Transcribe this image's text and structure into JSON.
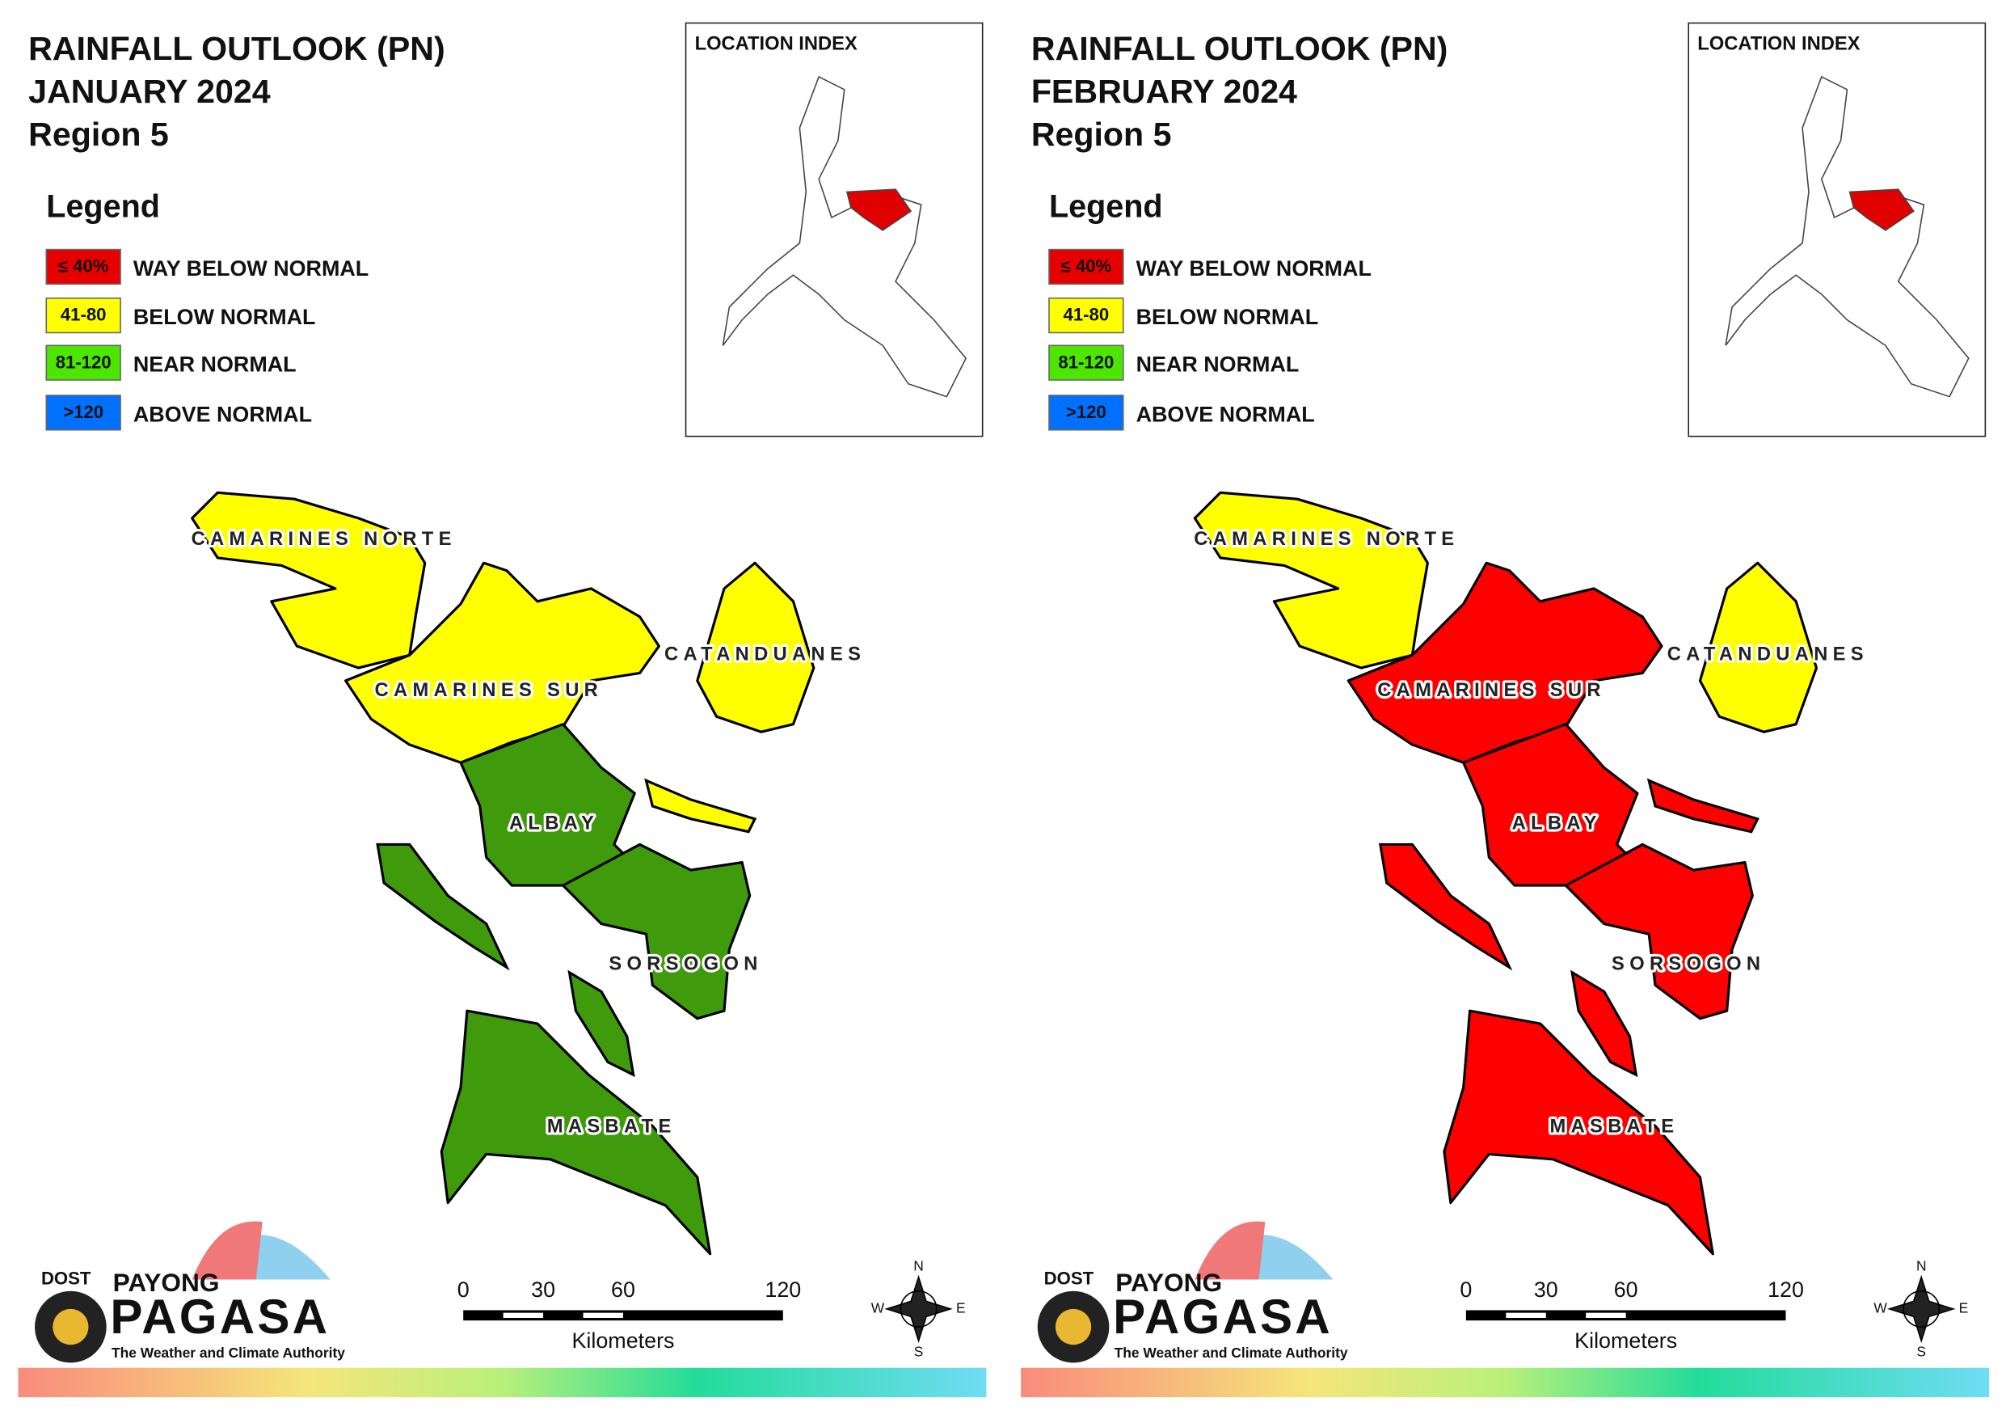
{
  "panels": [
    {
      "title": [
        "RAINFALL OUTLOOK (PN)",
        "JANUARY 2024",
        "Region 5"
      ],
      "legend": {
        "heading": "Legend",
        "items": [
          {
            "key": "≤ 40%",
            "label": "WAY BELOW NORMAL",
            "color": "#e60000"
          },
          {
            "key": "41-80",
            "label": "BELOW NORMAL",
            "color": "#ffff00"
          },
          {
            "key": "81-120",
            "label": "NEAR NORMAL",
            "color": "#4ce600"
          },
          {
            "key": ">120",
            "label": "ABOVE NORMAL",
            "color": "#0070ff"
          }
        ]
      },
      "location_index": "LOCATION INDEX",
      "provinces": [
        {
          "label": "CAMARINES NORTE",
          "color": "#ffff00"
        },
        {
          "label": "CAMARINES SUR",
          "color": "#ffff00"
        },
        {
          "label": "CATANDUANES",
          "color": "#ffff00"
        },
        {
          "label": "ALBAY",
          "color": "#3f9b0b"
        },
        {
          "label": "SORSOGON",
          "color": "#3f9b0b"
        },
        {
          "label": "MASBATE",
          "color": "#3f9b0b"
        }
      ],
      "scale": {
        "ticks": [
          0,
          30,
          60,
          120
        ],
        "unit": "Kilometers"
      },
      "logo": {
        "agency": "DOST",
        "line1": "PAYONG",
        "line2": "PAGASA",
        "tagline": "The Weather and Climate Authority"
      },
      "compass": {
        "n": "N",
        "e": "E",
        "s": "S",
        "w": "W"
      }
    },
    {
      "title": [
        "RAINFALL OUTLOOK (PN)",
        "FEBRUARY 2024",
        "Region 5"
      ],
      "legend": {
        "heading": "Legend",
        "items": [
          {
            "key": "≤ 40%",
            "label": "WAY BELOW NORMAL",
            "color": "#e60000"
          },
          {
            "key": "41-80",
            "label": "BELOW NORMAL",
            "color": "#ffff00"
          },
          {
            "key": "81-120",
            "label": "NEAR NORMAL",
            "color": "#4ce600"
          },
          {
            "key": ">120",
            "label": "ABOVE NORMAL",
            "color": "#0070ff"
          }
        ]
      },
      "location_index": "LOCATION INDEX",
      "provinces": [
        {
          "label": "CAMARINES NORTE",
          "color": "#ffff00"
        },
        {
          "label": "CAMARINES SUR",
          "color": "#ff0000"
        },
        {
          "label": "CATANDUANES",
          "color": "#ffff00"
        },
        {
          "label": "ALBAY",
          "color": "#ff0000"
        },
        {
          "label": "SORSOGON",
          "color": "#ff0000"
        },
        {
          "label": "MASBATE",
          "color": "#ff0000"
        }
      ],
      "scale": {
        "ticks": [
          0,
          30,
          60,
          120
        ],
        "unit": "Kilometers"
      },
      "logo": {
        "agency": "DOST",
        "line1": "PAYONG",
        "line2": "PAGASA",
        "tagline": "The Weather and Climate Authority"
      },
      "compass": {
        "n": "N",
        "e": "E",
        "s": "S",
        "w": "W"
      }
    }
  ]
}
